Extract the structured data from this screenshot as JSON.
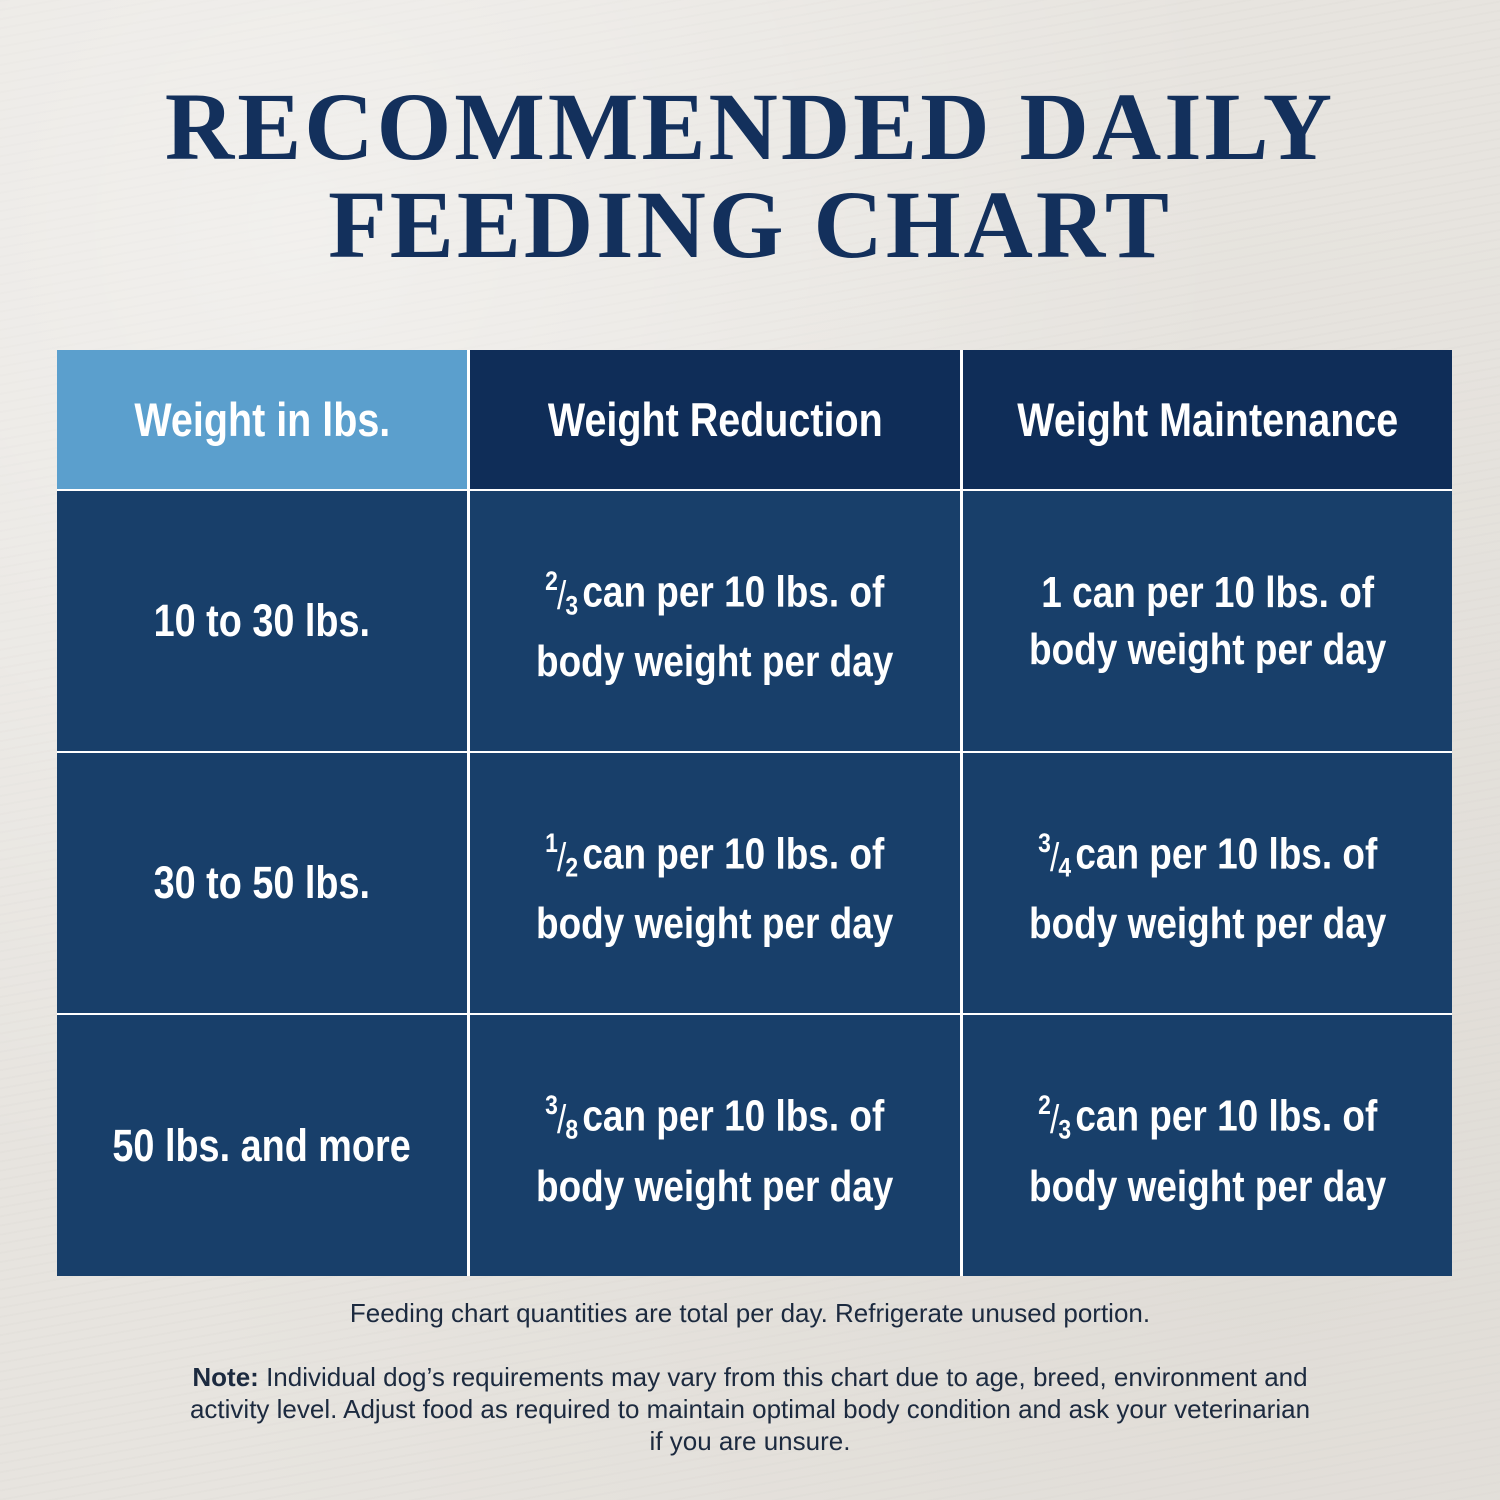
{
  "title": {
    "line1": "RECOMMENDED DAILY",
    "line2": "FEEDING CHART"
  },
  "colors": {
    "title": "#13305c",
    "header_weight_bg": "#5b9fcd",
    "header_bg": "#0f2d58",
    "cell_bg": "#183f6a",
    "grid_lines": "#ffffff",
    "background": "#e7e4df"
  },
  "table": {
    "headers": [
      "Weight in lbs.",
      "Weight Reduction",
      "Weight Maintenance"
    ],
    "rows": [
      {
        "weight": "10 to 30 lbs.",
        "reduction": {
          "num": "2",
          "den": "3",
          "line1": "can per 10 lbs. of",
          "line2": "body weight per day"
        },
        "maintenance": {
          "whole": "1",
          "line1": "can per 10 lbs. of",
          "line2": "body weight per day"
        }
      },
      {
        "weight": "30 to 50 lbs.",
        "reduction": {
          "num": "1",
          "den": "2",
          "line1": "can per 10 lbs. of",
          "line2": "body weight per day"
        },
        "maintenance": {
          "num": "3",
          "den": "4",
          "line1": "can per 10 lbs. of",
          "line2": "body weight per day"
        }
      },
      {
        "weight": "50 lbs. and more",
        "reduction": {
          "num": "3",
          "den": "8",
          "line1": "can per 10 lbs. of",
          "line2": "body weight per day"
        },
        "maintenance": {
          "num": "2",
          "den": "3",
          "line1": "can per 10 lbs. of",
          "line2": "body weight per day"
        }
      }
    ]
  },
  "footnote": "Feeding chart quantities are total per day. Refrigerate unused portion.",
  "note": {
    "label": "Note:",
    "text": "Individual dog’s requirements may vary from this chart due to age, breed, environment and activity level. Adjust food as required to maintain optimal body condition and ask your veterinarian if you are unsure."
  }
}
